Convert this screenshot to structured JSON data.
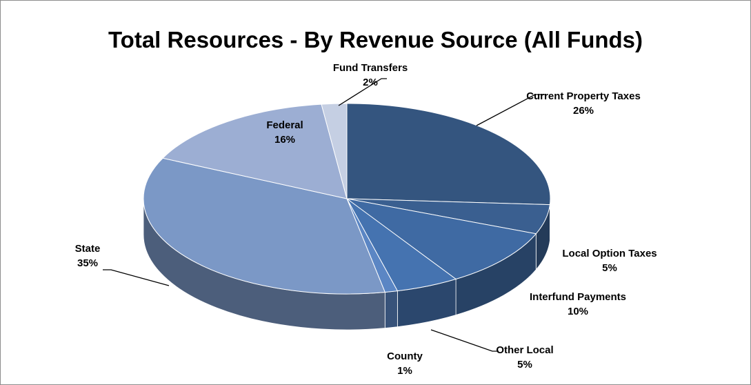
{
  "chart_data": {
    "type": "pie3d",
    "title": "Total Resources - By Revenue Source (All Funds)",
    "categories": [
      "Current Property Taxes",
      "Local Option Taxes",
      "Interfund Payments",
      "Other Local",
      "County",
      "State",
      "Federal",
      "Fund Transfers"
    ],
    "values": [
      26,
      5,
      10,
      5,
      1,
      35,
      16,
      2
    ],
    "value_labels": [
      "26%",
      "5%",
      "10%",
      "5%",
      "1%",
      "35%",
      "16%",
      "2%"
    ],
    "colors": [
      "#34557f",
      "#3a5f90",
      "#3f6aa3",
      "#4573b0",
      "#5b86c4",
      "#7b98c6",
      "#9caed3",
      "#c5cfe3"
    ]
  }
}
